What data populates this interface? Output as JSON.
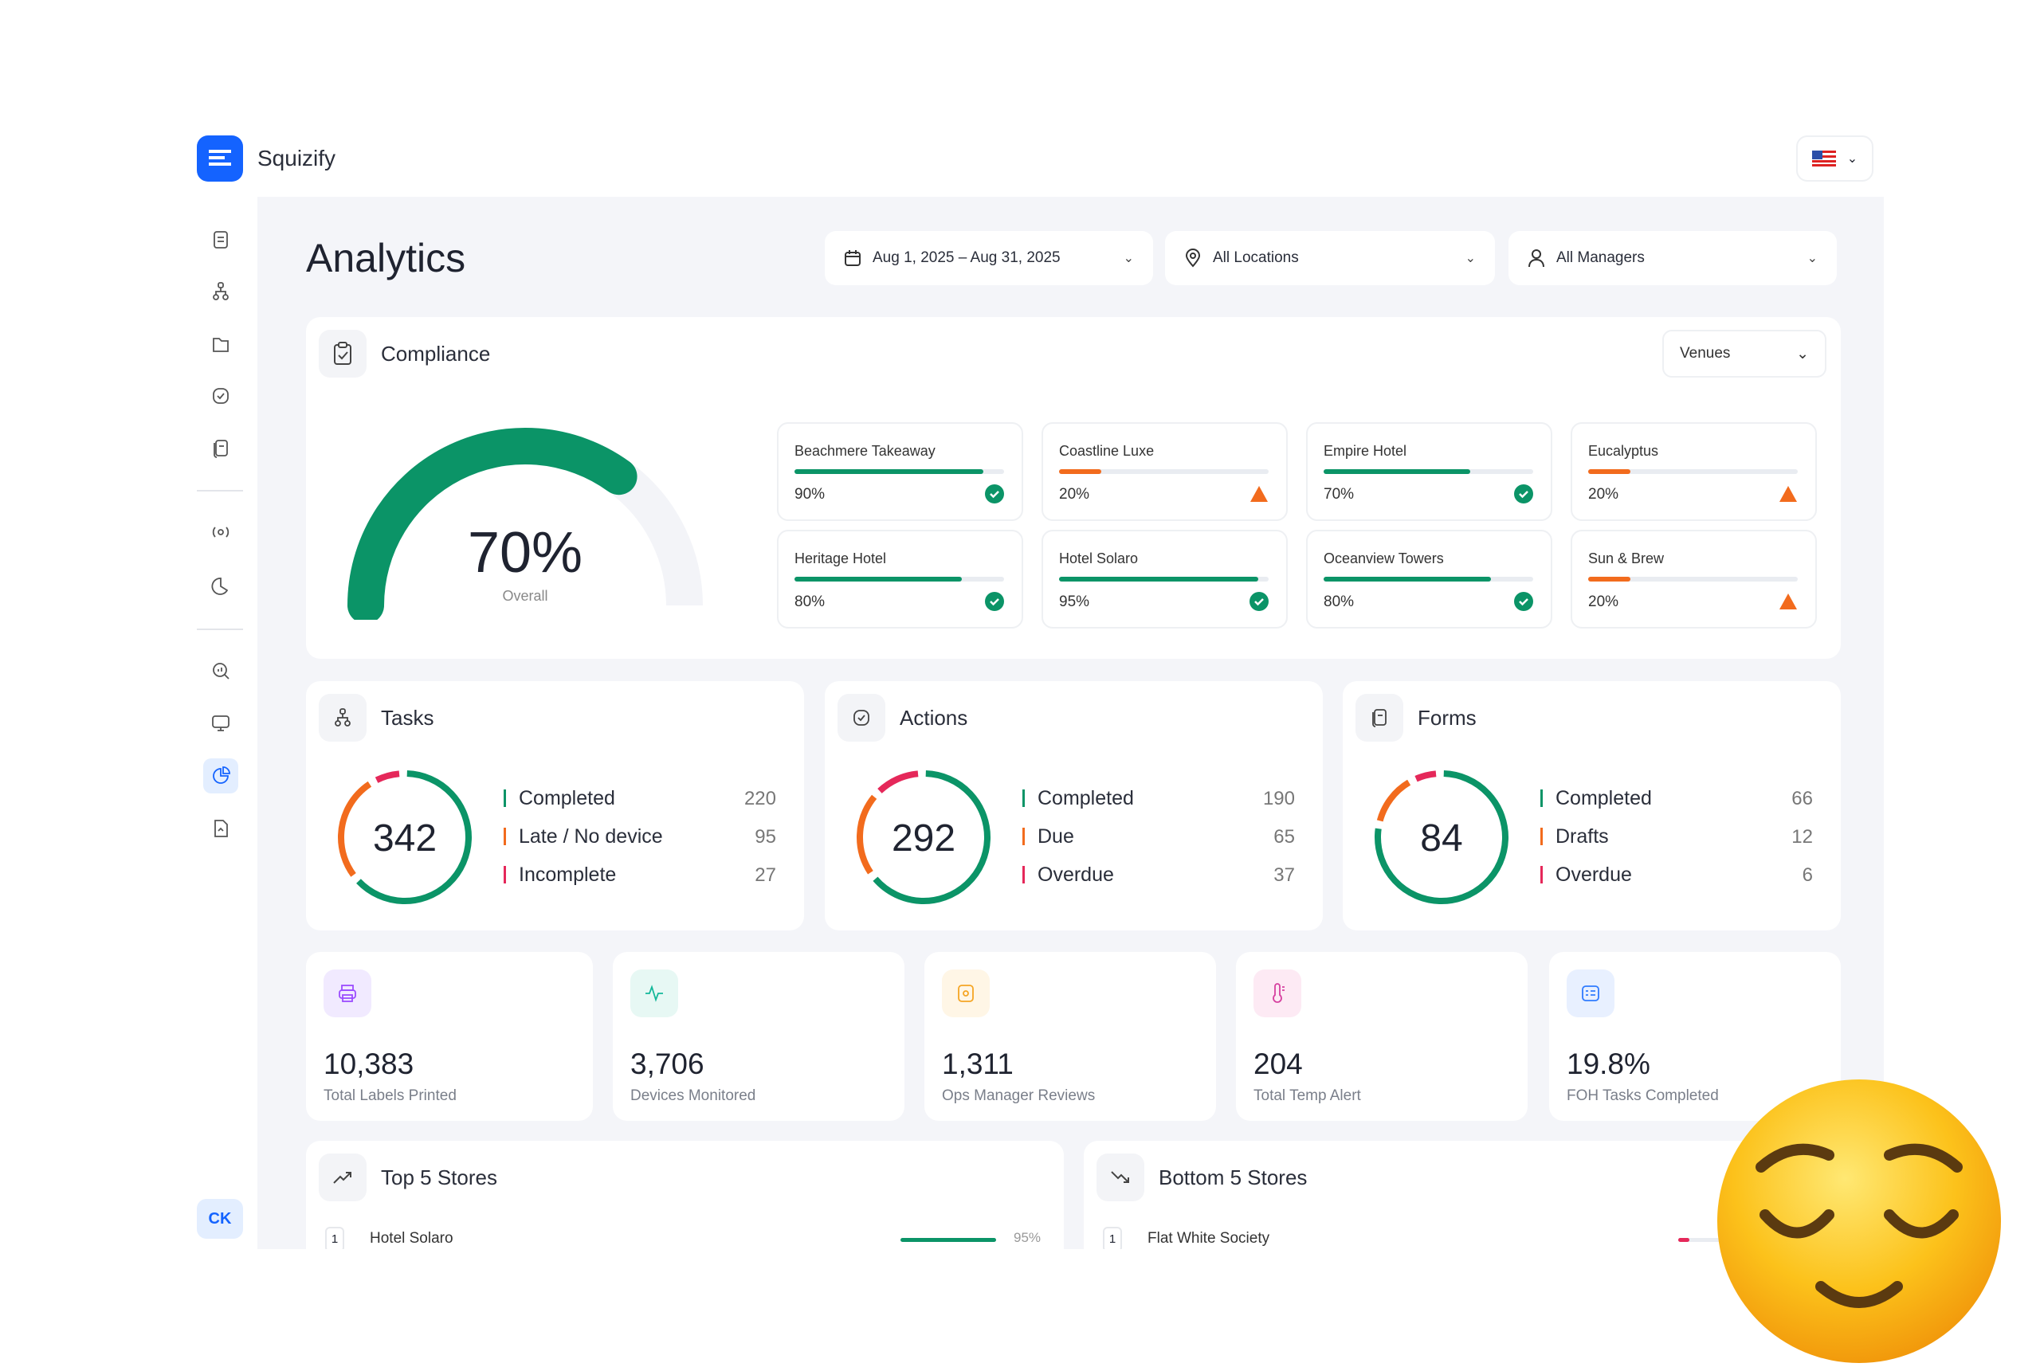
{
  "app": {
    "name": "Squizify",
    "locale_flag": "us-flag-icon",
    "user_initials": "CK"
  },
  "colors": {
    "brand": "#1463ff",
    "green": "#0b9467",
    "orange": "#f26b1d",
    "red": "#e5285a",
    "track": "#e9ecf1"
  },
  "page": {
    "title": "Analytics"
  },
  "filters": {
    "date_range": "Aug 1, 2025 – Aug 31, 2025",
    "location": "All Locations",
    "manager": "All Managers"
  },
  "sidebar": {
    "icons": [
      "clipboard-list-icon",
      "hierarchy-icon",
      "folder-icon",
      "check-badge-icon",
      "forms-icon",
      "broadcast-icon",
      "pie-chart-icon",
      "search-analytics-icon",
      "monitor-icon",
      "analytics-icon",
      "document-icon"
    ],
    "active": "analytics-icon"
  },
  "compliance": {
    "title": "Compliance",
    "venue_filter": "Venues",
    "overall_value": 70,
    "overall_label": "70%",
    "overall_caption": "Overall",
    "venues": [
      {
        "name": "Beachmere Takeaway",
        "value": 90,
        "label": "90%",
        "status": "ok"
      },
      {
        "name": "Coastline Luxe",
        "value": 20,
        "label": "20%",
        "status": "warning"
      },
      {
        "name": "Empire Hotel",
        "value": 70,
        "label": "70%",
        "status": "ok"
      },
      {
        "name": "Eucalyptus",
        "value": 20,
        "label": "20%",
        "status": "warning"
      },
      {
        "name": "Heritage Hotel",
        "value": 80,
        "label": "80%",
        "status": "ok"
      },
      {
        "name": "Hotel Solaro",
        "value": 95,
        "label": "95%",
        "status": "ok"
      },
      {
        "name": "Oceanview Towers",
        "value": 80,
        "label": "80%",
        "status": "ok"
      },
      {
        "name": "Sun & Brew",
        "value": 20,
        "label": "20%",
        "status": "warning"
      }
    ]
  },
  "summaries": [
    {
      "title": "Tasks",
      "icon": "hierarchy-icon",
      "total": "342",
      "items": [
        {
          "label": "Completed",
          "value": 220,
          "color": "#0b9467"
        },
        {
          "label": "Late / No device",
          "value": 95,
          "color": "#f26b1d"
        },
        {
          "label": "Incomplete",
          "value": 27,
          "color": "#e5285a"
        }
      ]
    },
    {
      "title": "Actions",
      "icon": "check-badge-icon",
      "total": "292",
      "items": [
        {
          "label": "Completed",
          "value": 190,
          "color": "#0b9467"
        },
        {
          "label": "Due",
          "value": 65,
          "color": "#f26b1d"
        },
        {
          "label": "Overdue",
          "value": 37,
          "color": "#e5285a"
        }
      ]
    },
    {
      "title": "Forms",
      "icon": "forms-icon",
      "total": "84",
      "items": [
        {
          "label": "Completed",
          "value": 66,
          "color": "#0b9467"
        },
        {
          "label": "Drafts",
          "value": 12,
          "color": "#f26b1d"
        },
        {
          "label": "Overdue",
          "value": 6,
          "color": "#e5285a"
        }
      ]
    }
  ],
  "stats": [
    {
      "value": "10,383",
      "label": "Total Labels Printed",
      "icon": "printer-icon",
      "color": "#9b4dff",
      "bg": "#f1eaff"
    },
    {
      "value": "3,706",
      "label": "Devices Monitored",
      "icon": "activity-icon",
      "color": "#14b89a",
      "bg": "#e7f8f4"
    },
    {
      "value": "1,311",
      "label": "Ops Manager Reviews",
      "icon": "review-icon",
      "color": "#f5a524",
      "bg": "#fff6e6"
    },
    {
      "value": "204",
      "label": "Total Temp Alert",
      "icon": "thermometer-icon",
      "color": "#d6409f",
      "bg": "#fdeaf4"
    },
    {
      "value": "19.8%",
      "label": "FOH Tasks Completed",
      "icon": "list-icon",
      "color": "#2f7bff",
      "bg": "#e8f0ff"
    }
  ],
  "top_stores": {
    "title": "Top 5 Stores",
    "rows": [
      {
        "rank": "1",
        "name": "Hotel Solaro",
        "value": 95,
        "label": "95%"
      }
    ]
  },
  "bottom_stores": {
    "title": "Bottom 5 Stores",
    "rows": [
      {
        "rank": "1",
        "name": "Flat White Society"
      }
    ]
  }
}
